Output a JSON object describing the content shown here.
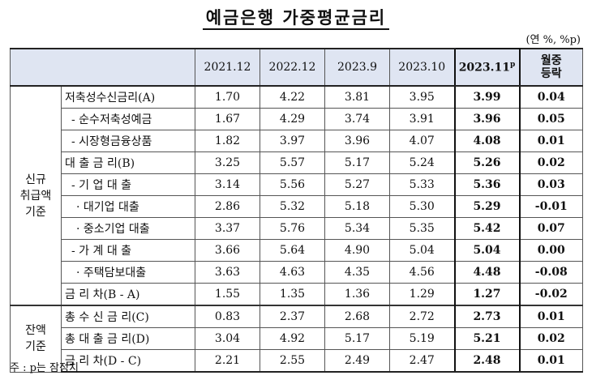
{
  "title": "예금은행 가중평균금리",
  "unit": "(연 %, %p)",
  "columns": [
    "2021.12",
    "2022.12",
    "2023.9",
    "2023.10",
    "2023.11",
    "p",
    "월중",
    "등락"
  ],
  "groups": [
    {
      "label_line1": "신규",
      "label_line2": "취급액",
      "label_line3": "기준"
    },
    {
      "label_line1": "잔액",
      "label_line2": "기준"
    }
  ],
  "rows": [
    {
      "label": "저축성수신금리(A)",
      "values": [
        "1.70",
        "4.22",
        "3.81",
        "3.95",
        "3.99",
        "0.04"
      ]
    },
    {
      "label": "- 순수저축성예금",
      "values": [
        "1.67",
        "4.29",
        "3.74",
        "3.91",
        "3.96",
        "0.05"
      ]
    },
    {
      "label": "- 시장형금융상품",
      "values": [
        "1.82",
        "3.97",
        "3.96",
        "4.07",
        "4.08",
        "0.01"
      ]
    },
    {
      "label": "대 출 금 리(B)",
      "values": [
        "3.25",
        "5.57",
        "5.17",
        "5.24",
        "5.26",
        "0.02"
      ]
    },
    {
      "label": "- 기 업 대 출",
      "values": [
        "3.14",
        "5.56",
        "5.27",
        "5.33",
        "5.36",
        "0.03"
      ]
    },
    {
      "label": "· 대기업 대출",
      "values": [
        "2.86",
        "5.32",
        "5.18",
        "5.30",
        "5.29",
        "-0.01"
      ]
    },
    {
      "label": "· 중소기업 대출",
      "values": [
        "3.37",
        "5.76",
        "5.34",
        "5.35",
        "5.42",
        "0.07"
      ]
    },
    {
      "label": "- 가 계 대 출",
      "values": [
        "3.66",
        "5.64",
        "4.90",
        "5.04",
        "5.04",
        "0.00"
      ]
    },
    {
      "label": "· 주택담보대출",
      "values": [
        "3.63",
        "4.63",
        "4.35",
        "4.56",
        "4.48",
        "-0.08"
      ]
    },
    {
      "label": "금 리 차(B - A)",
      "values": [
        "1.55",
        "1.35",
        "1.36",
        "1.29",
        "1.27",
        "-0.02"
      ]
    },
    {
      "label": "총 수 신 금 리(C)",
      "values": [
        "0.83",
        "2.37",
        "2.68",
        "2.72",
        "2.73",
        "0.01"
      ]
    },
    {
      "label": "총 대 출 금 리(D)",
      "values": [
        "3.04",
        "4.92",
        "5.17",
        "5.19",
        "5.21",
        "0.02"
      ]
    },
    {
      "label": "금 리 차(D - C)",
      "values": [
        "2.21",
        "2.55",
        "2.49",
        "2.47",
        "2.48",
        "0.01"
      ]
    }
  ],
  "note": "주 : p는 잠정치"
}
